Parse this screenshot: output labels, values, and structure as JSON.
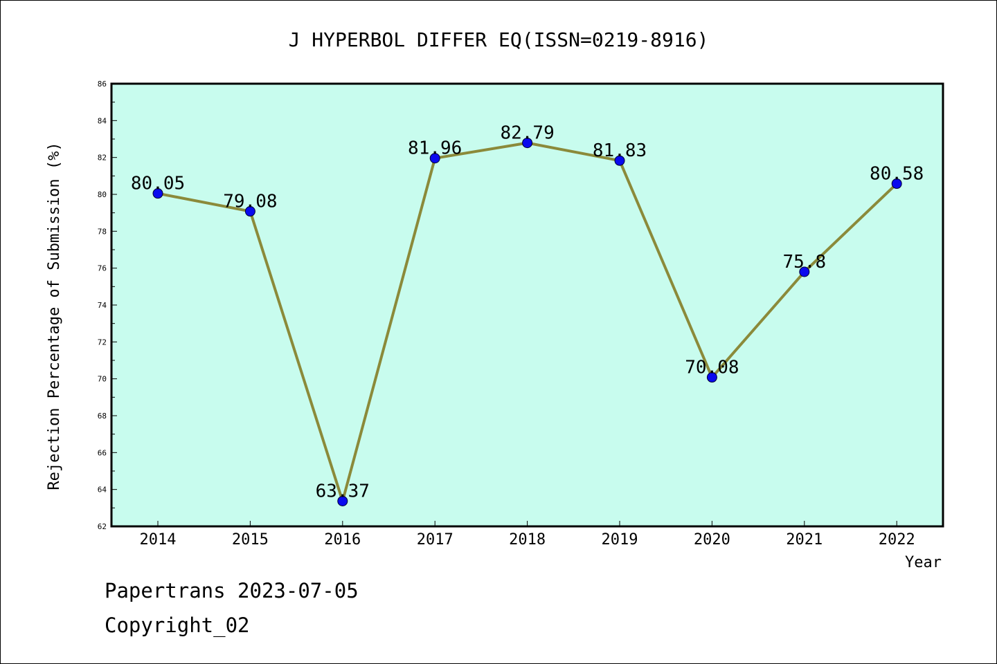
{
  "chart_data": {
    "type": "line",
    "title": "J HYPERBOL DIFFER EQ(ISSN=0219-8916)",
    "xlabel": "Year",
    "ylabel": "Rejection Percentage of Submission (%)",
    "categories": [
      "2014",
      "2015",
      "2016",
      "2017",
      "2018",
      "2019",
      "2020",
      "2021",
      "2022"
    ],
    "values": [
      80.05,
      79.08,
      63.37,
      81.96,
      82.79,
      81.83,
      70.08,
      75.8,
      80.58
    ],
    "value_labels": [
      "80.05",
      "79.08",
      "63.37",
      "81.96",
      "82.79",
      "81.83",
      "70.08",
      "75.8",
      "80.58"
    ],
    "ylim": [
      62,
      86
    ],
    "yticks": [
      "62",
      "64",
      "66",
      "68",
      "70",
      "72",
      "74",
      "76",
      "78",
      "80",
      "82",
      "84",
      "86"
    ],
    "grid": false,
    "legend": "none",
    "colors": {
      "plot_background": "#c8fcee",
      "line": "#8b8a3a",
      "marker": "#0a0aee"
    }
  },
  "footer": {
    "line1": "Papertrans 2023-07-05",
    "line2": "Copyright_02"
  }
}
